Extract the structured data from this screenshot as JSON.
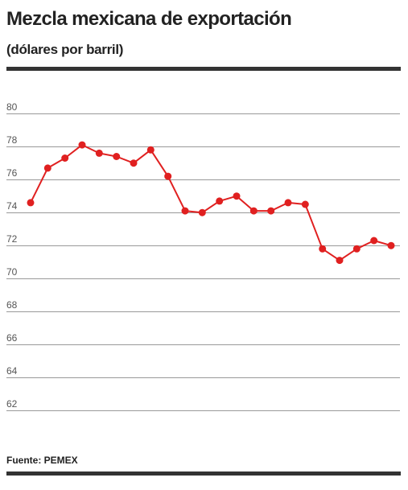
{
  "header": {
    "title": "Mezcla mexicana de exportación",
    "subtitle": "(dólares por barril)"
  },
  "footer": {
    "source": "Fuente: PEMEX"
  },
  "colors": {
    "series": "#e02020",
    "grid": "#999999",
    "rule": "#333333"
  },
  "chart_data": {
    "type": "line",
    "title": "Mezcla mexicana de exportación",
    "subtitle": "(dólares por barril)",
    "xlabel": "",
    "ylabel": "",
    "ylim": [
      62,
      80
    ],
    "yticks": [
      62,
      64,
      66,
      68,
      70,
      72,
      74,
      76,
      78,
      80
    ],
    "grid": true,
    "legend": "none",
    "series": [
      {
        "values": [
          74.2,
          76.3,
          76.9,
          77.7,
          77.2,
          77.0,
          76.6,
          77.4,
          75.8,
          73.7,
          73.6,
          74.3,
          74.6,
          73.7,
          73.7,
          74.2,
          74.1,
          71.4,
          70.7,
          71.4,
          71.9,
          71.6
        ]
      }
    ]
  }
}
